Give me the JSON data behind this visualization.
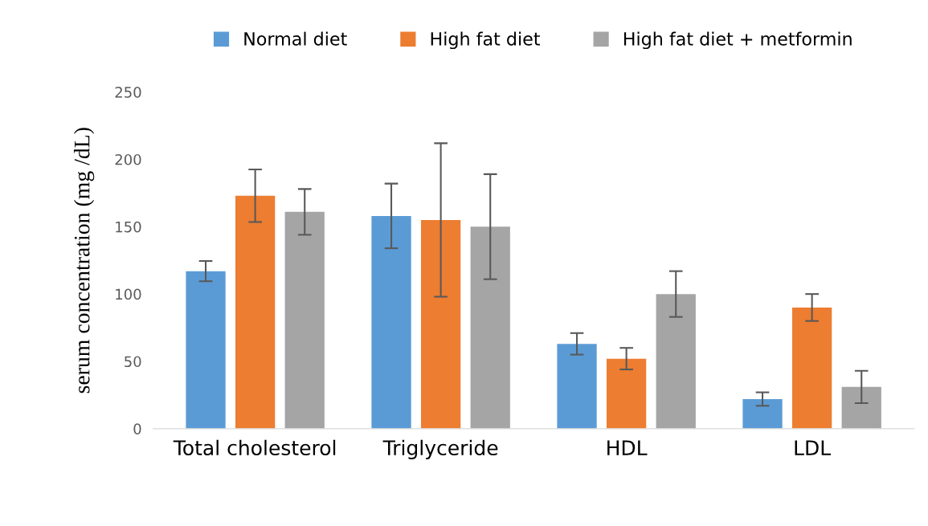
{
  "chart_data": {
    "type": "bar",
    "ylabel": "serum concentration (mg /dL)",
    "categories": [
      "Total cholesterol",
      "Triglyceride",
      "HDL",
      "LDL"
    ],
    "series": [
      {
        "name": "Normal diet",
        "color": "#5b9bd5",
        "values": [
          117,
          158,
          63,
          22
        ],
        "errors": [
          7.5,
          24,
          8,
          5
        ]
      },
      {
        "name": "High fat diet",
        "color": "#ed7d31",
        "values": [
          173,
          155,
          52,
          90
        ],
        "errors": [
          19.5,
          57,
          8,
          10
        ]
      },
      {
        "name": "High fat diet + metformin",
        "color": "#a5a5a5",
        "values": [
          161,
          150,
          100,
          31
        ],
        "errors": [
          17,
          39,
          17,
          12
        ]
      }
    ],
    "ylim": [
      0,
      250
    ],
    "yticks": [
      0,
      50,
      100,
      150,
      200,
      250
    ],
    "grid": false,
    "legend": "top"
  }
}
